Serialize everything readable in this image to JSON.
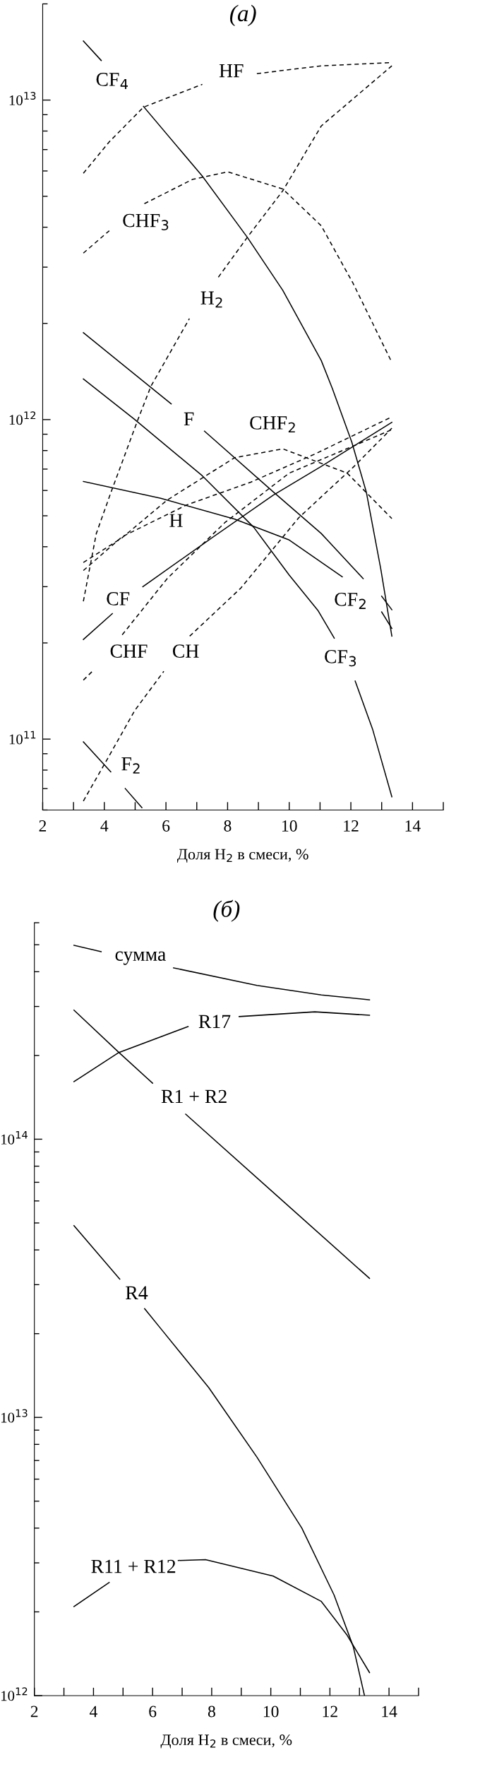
{
  "chart_data": [
    {
      "type": "line",
      "title": "(а)",
      "xlabel": "Доля H$_{2}$ в смеси, %",
      "log": "y",
      "xlim": [
        2,
        15
      ],
      "xticks": [
        2,
        {
          "value": 3,
          "label": null
        },
        4,
        {
          "value": 5,
          "label": null
        },
        6,
        {
          "value": 7,
          "label": null
        },
        8,
        {
          "value": 9,
          "label": null
        },
        10,
        {
          "value": 11,
          "label": null
        },
        12,
        {
          "value": 13,
          "label": null
        },
        14,
        {
          "value": 15,
          "label": null
        }
      ],
      "ylim": [
        60000000000.0,
        20000000000000.0
      ],
      "yticks": [
        {
          "value": 100000000000.0,
          "label": "10$^{11}$"
        },
        {
          "value": 1000000000000.0,
          "label": "10$^{12}$"
        },
        {
          "value": 10000000000000.0,
          "label": "10$^{13}$"
        }
      ],
      "series": [
        {
          "name": "CF$_{4}$",
          "color": "#000000",
          "line_style": "solid",
          "x": [
            3.32,
            3.9,
            4.6,
            5.27,
            7.18,
            8.64,
            9.79,
            11.04,
            11.4,
            12.03,
            12.5,
            12.97,
            13.33
          ],
          "values": [
            15300000000000.0,
            13300000000000.0,
            null,
            9550000000000.0,
            5780000000000.0,
            3720000000000.0,
            2540000000000.0,
            1530000000000.0,
            1250000000000.0,
            850000000000.0,
            594000000000.0,
            341000000000.0,
            210000000000.0
          ]
        },
        {
          "name": "F",
          "color": "#000000",
          "line_style": "solid",
          "x": [
            3.32,
            6.17,
            6.7,
            7.25,
            9.48,
            11.04,
            12.4,
            12.7,
            13.0,
            13.33
          ],
          "values": [
            1870000000000.0,
            1120000000000.0,
            null,
            920000000000.0,
            594000000000.0,
            440000000000.0,
            318000000000.0,
            null,
            280000000000.0,
            254000000000.0
          ]
        },
        {
          "name": "CF$_{3}$",
          "color": "#000000",
          "line_style": "solid",
          "x": [
            3.32,
            4.99,
            7.18,
            8.85,
            10.0,
            10.94,
            11.46,
            11.8,
            12.14,
            12.71,
            13.33
          ],
          "values": [
            1340000000000.0,
            1000000000000.0,
            667000000000.0,
            460000000000.0,
            326000000000.0,
            252000000000.0,
            207000000000.0,
            null,
            152000000000.0,
            107000000000.0,
            66000000000.0
          ]
        },
        {
          "name": "CF$_{2}$",
          "color": "#000000",
          "line_style": "solid",
          "x": [
            3.32,
            5.83,
            8.23,
            10.0,
            11.72,
            12.3,
            13.0,
            13.33
          ],
          "values": [
            640000000000.0,
            567000000000.0,
            488000000000.0,
            420000000000.0,
            322000000000.0,
            null,
            250000000000.0,
            222000000000.0
          ]
        },
        {
          "name": "CF",
          "color": "#000000",
          "line_style": "solid",
          "x": [
            3.32,
            4.26,
            4.75,
            5.25,
            7.39,
            9.48,
            11.04,
            13.33
          ],
          "values": [
            205000000000.0,
            247000000000.0,
            null,
            300000000000.0,
            420000000000.0,
            580000000000.0,
            714000000000.0,
            980000000000.0
          ]
        },
        {
          "name": "F$_{2}$",
          "color": "#000000",
          "line_style": "solid",
          "x": [
            3.32,
            4.21,
            4.45,
            4.68,
            5.22
          ],
          "values": [
            98000000000.0,
            79000000000.0,
            null,
            70000000000.0,
            61000000000.0
          ]
        },
        {
          "name": "HF",
          "color": "#000000",
          "line_style": "dashed",
          "x": [
            3.32,
            4.16,
            5.27,
            7.18,
            8.1,
            8.95,
            11.04,
            13.33
          ],
          "values": [
            5900000000000.0,
            7400000000000.0,
            9500000000000.0,
            11200000000000.0,
            null,
            12100000000000.0,
            12800000000000.0,
            13100000000000.0
          ]
        },
        {
          "name": "H$_{2}$",
          "color": "#000000",
          "line_style": "dashed",
          "x": [
            3.32,
            3.74,
            4.21,
            5.09,
            5.51,
            6.76,
            7.2,
            7.7,
            8.64,
            9.79,
            11.04,
            13.33
          ],
          "values": [
            270000000000.0,
            440000000000.0,
            590000000000.0,
            1000000000000.0,
            1270000000000.0,
            2070000000000.0,
            null,
            2790000000000.0,
            3720000000000.0,
            5200000000000.0,
            8300000000000.0,
            12800000000000.0
          ]
        },
        {
          "name": "CHF$_{3}$",
          "color": "#000000",
          "line_style": "dashed",
          "x": [
            3.32,
            4.16,
            4.7,
            5.3,
            6.87,
            8.01,
            9.79,
            11.04,
            12.08,
            13.33
          ],
          "values": [
            3320000000000.0,
            3900000000000.0,
            null,
            4740000000000.0,
            5650000000000.0,
            5960000000000.0,
            5270000000000.0,
            4040000000000.0,
            2660000000000.0,
            1510000000000.0
          ]
        },
        {
          "name": "CHF$_{2}$",
          "color": "#000000",
          "line_style": "dashed",
          "x": [
            3.32,
            4.58,
            6.04,
            8.23,
            9.79,
            11.88,
            13.33
          ],
          "values": [
            357000000000.0,
            427000000000.0,
            560000000000.0,
            760000000000.0,
            810000000000.0,
            680000000000.0,
            490000000000.0
          ]
        },
        {
          "name": "H",
          "color": "#000000",
          "line_style": "dashed",
          "x": [
            3.32,
            4.58,
            6.66,
            8.75,
            10.83,
            13.33
          ],
          "values": [
            337000000000.0,
            430000000000.0,
            540000000000.0,
            637000000000.0,
            780000000000.0,
            1020000000000.0
          ]
        },
        {
          "name": "CHF",
          "color": "#000000",
          "line_style": "dashed",
          "x": [
            3.32,
            3.64,
            4.1,
            4.58,
            6.04,
            7.91,
            10.0,
            13.33
          ],
          "values": [
            153000000000.0,
            164000000000.0,
            null,
            212000000000.0,
            318000000000.0,
            476000000000.0,
            680000000000.0,
            930000000000.0
          ]
        },
        {
          "name": "CH",
          "color": "#000000",
          "line_style": "dashed",
          "x": [
            3.32,
            4.05,
            4.99,
            5.93,
            6.35,
            6.77,
            8.43,
            10.31,
            12.08,
            13.33
          ],
          "values": [
            64000000000.0,
            85000000000.0,
            123000000000.0,
            163000000000.0,
            null,
            210000000000.0,
            297000000000.0,
            493000000000.0,
            710000000000.0,
            940000000000.0
          ]
        }
      ]
    },
    {
      "type": "line",
      "title": "(б)",
      "xlabel": "Доля H$_{2}$ в смеси, %",
      "log": "y",
      "xlim": [
        2,
        15
      ],
      "xticks": [
        2,
        {
          "value": 3,
          "label": null
        },
        4,
        {
          "value": 5,
          "label": null
        },
        6,
        {
          "value": 7,
          "label": null
        },
        8,
        {
          "value": 9,
          "label": null
        },
        10,
        {
          "value": 11,
          "label": null
        },
        12,
        {
          "value": 13,
          "label": null
        },
        14,
        {
          "value": 15,
          "label": null
        }
      ],
      "ylim": [
        1000000000000.0,
        600000000000000.0
      ],
      "yticks": [
        {
          "value": 1000000000000.0,
          "label": "10$^{12}$"
        },
        {
          "value": 10000000000000.0,
          "label": "10$^{13}$"
        },
        {
          "value": 100000000000000.0,
          "label": "10$^{14}$"
        }
      ],
      "series": [
        {
          "name": "сумма",
          "color": "#000000",
          "line_style": "solid",
          "x": [
            3.34,
            4.26,
            5.5,
            6.71,
            9.53,
            11.71,
            13.34
          ],
          "values": [
            498000000000000.0,
            472000000000000.0,
            null,
            413000000000000.0,
            357000000000000.0,
            330000000000000.0,
            317000000000000.0
          ]
        },
        {
          "name": "R17",
          "color": "#000000",
          "line_style": "solid",
          "x": [
            3.34,
            4.86,
            7.2,
            8.1,
            8.93,
            11.49,
            13.34
          ],
          "values": [
            161000000000000.0,
            205000000000000.0,
            254000000000000.0,
            null,
            276000000000000.0,
            287000000000000.0,
            279000000000000.0
          ]
        },
        {
          "name": "R1 + R2",
          "color": "#000000",
          "line_style": "solid",
          "x": [
            3.34,
            4.86,
            6.0,
            6.6,
            7.12,
            10.18,
            13.34
          ],
          "values": [
            291000000000000.0,
            205000000000000.0,
            159000000000000.0,
            null,
            123000000000000.0,
            63000000000000.0,
            31600000000000.0
          ]
        },
        {
          "name": "R4",
          "color": "#000000",
          "line_style": "solid",
          "x": [
            3.34,
            4.89,
            5.3,
            5.73,
            6.27,
            7.9,
            9.53,
            11.05,
            12.14,
            12.79,
            13.17
          ],
          "values": [
            48900000000000.0,
            31400000000000.0,
            null,
            24600000000000.0,
            20900000000000.0,
            12800000000000.0,
            7200000000000.0,
            4000000000000.0,
            2300000000000.0,
            1500000000000.0,
            1000000000000.0
          ]
        },
        {
          "name": "R11 + R12",
          "color": "#000000",
          "line_style": "solid",
          "x": [
            3.34,
            4.53,
            5.7,
            6.87,
            7.79,
            10.08,
            11.71,
            12.58,
            13.34
          ],
          "values": [
            2090000000000.0,
            2550000000000.0,
            null,
            3060000000000.0,
            3080000000000.0,
            2690000000000.0,
            2180000000000.0,
            1650000000000.0,
            1210000000000.0
          ]
        }
      ]
    }
  ]
}
